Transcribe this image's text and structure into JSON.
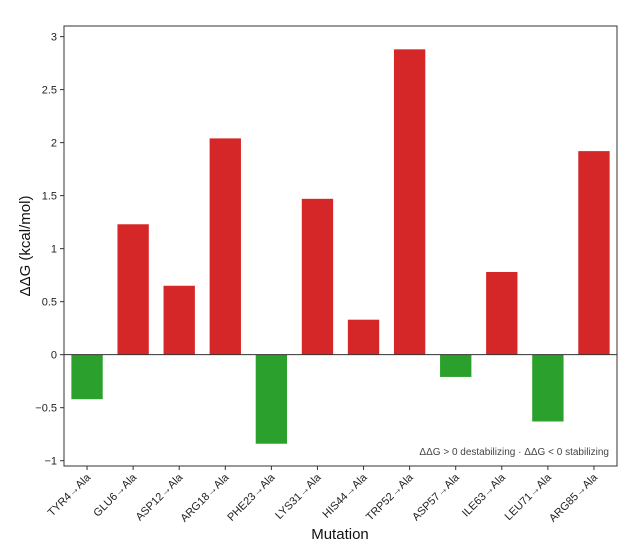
{
  "chart_data": {
    "type": "bar",
    "xlabel": "Mutation",
    "ylabel": "ΔΔG (kcal/mol)",
    "categories": [
      "TYR4→Ala",
      "GLU6→Ala",
      "ASP12→Ala",
      "ARG18→Ala",
      "PHE23→Ala",
      "LYS31→Ala",
      "HIS44→Ala",
      "TRP52→Ala",
      "ASP57→Ala",
      "ILE63→Ala",
      "LEU71→Ala",
      "ARG85→Ala"
    ],
    "values": [
      -0.42,
      1.23,
      0.65,
      2.04,
      -0.84,
      1.47,
      0.33,
      2.88,
      -0.21,
      0.78,
      -0.63,
      1.92
    ],
    "ylim": [
      -1.05,
      3.1
    ],
    "yticks": [
      -1,
      -0.5,
      0,
      0.5,
      1,
      1.5,
      2,
      2.5,
      3
    ],
    "grid": false,
    "annotation": "ΔΔG > 0 destabilizing · ΔΔG < 0 stabilizing",
    "colors": {
      "positive": "#d62728",
      "negative": "#2ca02c",
      "zero_line": "#333333",
      "frame": "#333333"
    }
  }
}
